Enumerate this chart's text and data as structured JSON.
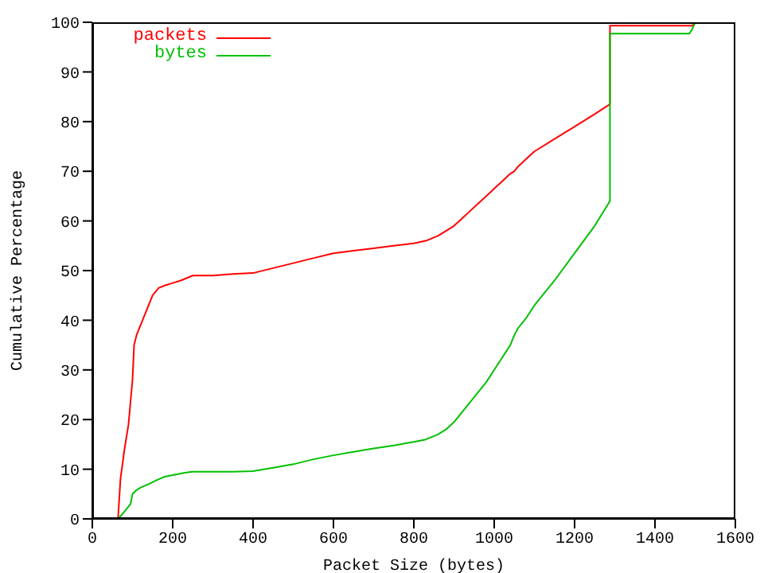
{
  "chart_data": {
    "type": "line",
    "xlabel": "Packet Size (bytes)",
    "ylabel": "Cumulative Percentage",
    "xlim": [
      0,
      1600
    ],
    "xticks": [
      0,
      200,
      400,
      600,
      800,
      1000,
      1200,
      1400,
      1600
    ],
    "ylim": [
      0,
      100
    ],
    "yticks": [
      0,
      10,
      20,
      30,
      40,
      50,
      60,
      70,
      80,
      90,
      100
    ],
    "legend": "top left",
    "marker": "none",
    "line_style": "solid",
    "series": [
      {
        "name": "packets",
        "color": "#ff0000",
        "x": [
          64,
          70,
          80,
          90,
          100,
          104,
          110,
          120,
          130,
          140,
          150,
          165,
          180,
          200,
          220,
          250,
          300,
          350,
          400,
          450,
          500,
          550,
          600,
          650,
          700,
          750,
          800,
          830,
          860,
          880,
          900,
          920,
          940,
          960,
          980,
          1000,
          1020,
          1040,
          1050,
          1060,
          1080,
          1100,
          1150,
          1200,
          1250,
          1288,
          1288,
          1493,
          1500
        ],
        "values": [
          0,
          8,
          14,
          19,
          28,
          35,
          37,
          39,
          41,
          43,
          45,
          46.5,
          47,
          47.5,
          48,
          49,
          49,
          49.3,
          49.5,
          50.5,
          51.5,
          52.5,
          53.5,
          54,
          54.5,
          55,
          55.5,
          56,
          57,
          58,
          59,
          60.5,
          62,
          63.5,
          65,
          66.5,
          68,
          69.5,
          70,
          71,
          72.5,
          74,
          76.5,
          79,
          81.5,
          83.5,
          99.3,
          99.3,
          100
        ]
      },
      {
        "name": "bytes",
        "color": "#00c000",
        "x": [
          64,
          75,
          85,
          95,
          100,
          110,
          120,
          140,
          160,
          180,
          200,
          230,
          250,
          300,
          350,
          400,
          450,
          500,
          550,
          600,
          650,
          700,
          750,
          800,
          830,
          860,
          880,
          900,
          920,
          940,
          960,
          980,
          1000,
          1020,
          1040,
          1050,
          1060,
          1080,
          1100,
          1150,
          1200,
          1250,
          1288,
          1288,
          1485,
          1492,
          1500
        ],
        "values": [
          0,
          1,
          2,
          3,
          5,
          5.8,
          6.3,
          7,
          7.8,
          8.5,
          8.8,
          9.3,
          9.5,
          9.5,
          9.5,
          9.6,
          10.3,
          11,
          12,
          12.8,
          13.5,
          14.2,
          14.8,
          15.5,
          16,
          17,
          18,
          19.5,
          21.5,
          23.5,
          25.5,
          27.5,
          30,
          32.5,
          35,
          37,
          38.5,
          40.5,
          43,
          48,
          53.5,
          59,
          64,
          97.7,
          97.7,
          98.5,
          100
        ]
      }
    ]
  }
}
